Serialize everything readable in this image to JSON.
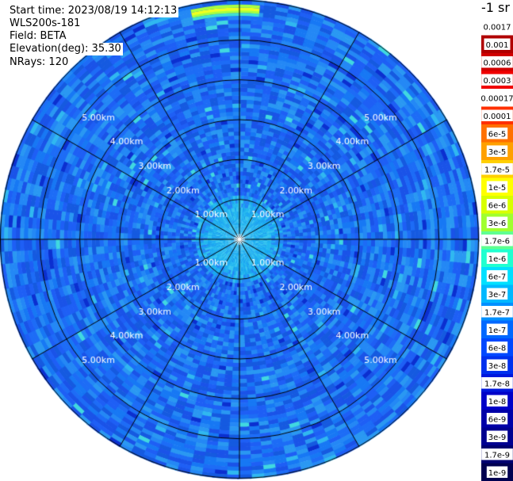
{
  "info": {
    "start_time": "Start time: 2023/08/19 14:12:13",
    "instrument": "WLS200s-181",
    "field": "Field: BETA",
    "elevation": "Elevation(deg): 35.30",
    "nrays": "NRays: 120"
  },
  "colorbar": {
    "unit": "-1 sr",
    "labels": [
      "0.0017",
      "0.001",
      "0.0006",
      "0.0003",
      "0.00017",
      "0.0001",
      "6e-5",
      "3e-5",
      "1.7e-5",
      "1e-5",
      "6e-6",
      "3e-6",
      "1.7e-6",
      "1e-6",
      "6e-7",
      "3e-7",
      "1.7e-7",
      "1e-7",
      "6e-8",
      "3e-8",
      "1.7e-8",
      "1e-8",
      "6e-9",
      "3e-9",
      "1.7e-9",
      "1e-9"
    ],
    "colors": [
      "#ffffff",
      "#b00000",
      "#d00000",
      "#f00000",
      "#ffffff",
      "#ff3000",
      "#ff7000",
      "#ffa000",
      "#ffd000",
      "#ffff00",
      "#d8ff00",
      "#a0ff30",
      "#60ff90",
      "#20ffd0",
      "#00e0ff",
      "#00b8ff",
      "#0090ff",
      "#0068ff",
      "#0048ff",
      "#0030ee",
      "#0018dd",
      "#0000c8",
      "#0000a8",
      "#000090",
      "#000070",
      "#000050"
    ]
  },
  "chart_data": {
    "type": "heatmap",
    "projection": "polar",
    "field": "BETA",
    "unit": "-1 sr",
    "scale": "log",
    "range": [
      1e-09,
      0.0017
    ],
    "elevation_deg": 35.3,
    "nrays": 120,
    "ring_distances_km": [
      1.0,
      2.0,
      3.0,
      4.0,
      5.0
    ],
    "ring_labels": [
      "1.00km",
      "2.00km",
      "3.00km",
      "4.00km",
      "5.00km"
    ],
    "max_range_km": 6.0,
    "radial_lines": 12,
    "dominant_value": "1e-7",
    "features": [
      {
        "description_value": "1.7e-7",
        "range_km": [
          0,
          1.0
        ]
      },
      {
        "description_value": "1.7e-5",
        "range_km": [
          5.6,
          5.9
        ],
        "azimuth_deg": [
          -12,
          5
        ]
      }
    ]
  }
}
